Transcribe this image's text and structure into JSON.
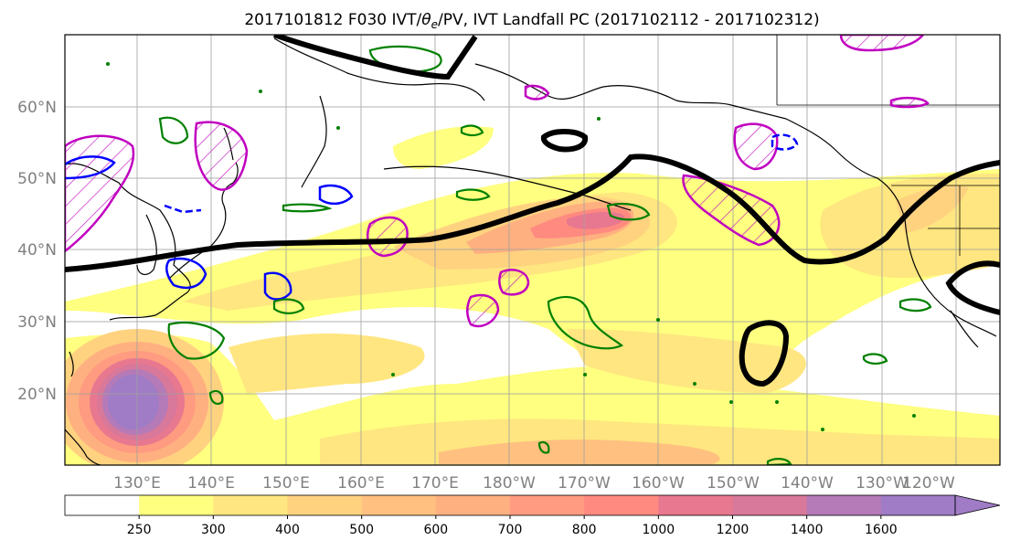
{
  "title_prefix": "2017101812 F030 IVT/",
  "title_theta": "θ",
  "title_theta_sub": "e",
  "title_suffix": "/PV, IVT Landfall PC (2017102112 - 2017102312)",
  "map": {
    "lat_labels": [
      "60°N",
      "50°N",
      "40°N",
      "30°N",
      "20°N"
    ],
    "lon_labels": [
      "130°E",
      "140°E",
      "150°E",
      "160°E",
      "170°E",
      "180°W",
      "170°W",
      "160°W",
      "150°W",
      "140°W",
      "130°W",
      "120°W"
    ]
  },
  "colorbar": {
    "ticks": [
      "250",
      "300",
      "400",
      "500",
      "600",
      "700",
      "800",
      "1000",
      "1200",
      "1400",
      "1600"
    ],
    "colors": [
      "#ffffff",
      "#ffff80",
      "#ffe680",
      "#ffd280",
      "#ffc080",
      "#ffb080",
      "#ff9b80",
      "#ff8a80",
      "#e8788f",
      "#d8789a",
      "#b57ab8",
      "#a07cc6"
    ]
  },
  "colors": {
    "pc_contour": "#000000",
    "theta_e": "#008000",
    "pv_positive": "#c000c0",
    "pv_negative": "#0000ff",
    "coast": "#000000",
    "grid": "#a0a0a0"
  }
}
